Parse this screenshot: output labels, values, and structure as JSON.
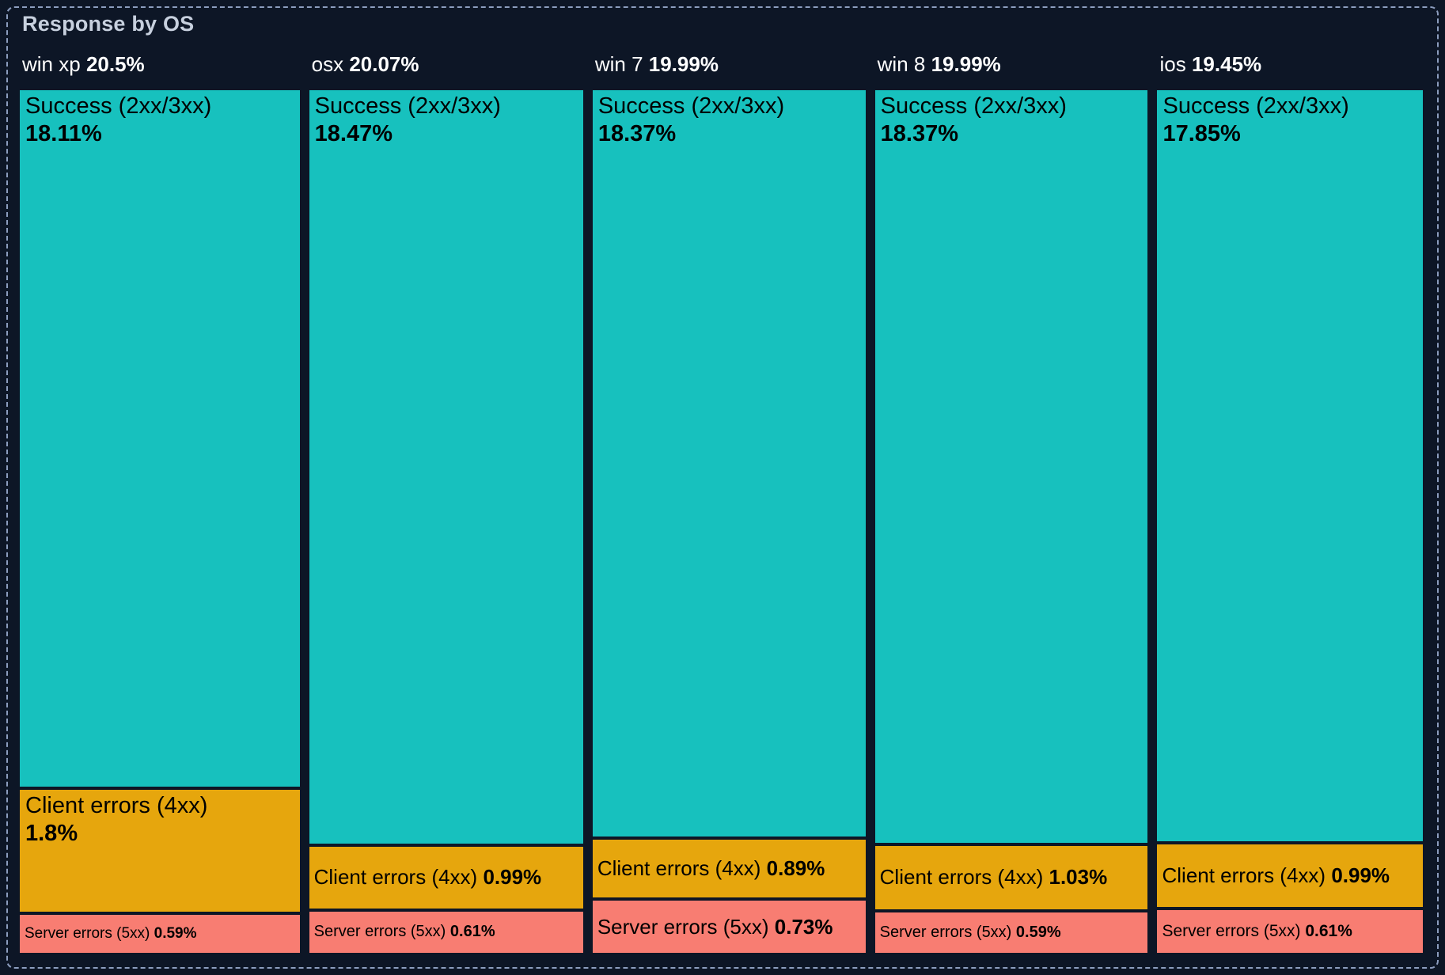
{
  "panel": {
    "title": "Response by OS"
  },
  "chart_data": {
    "type": "treemap",
    "title": "Response by OS",
    "unit": "%",
    "orientation": "columns",
    "background": "#0d1626",
    "palette": {
      "success": "#17c1be",
      "client_errors": "#e6a60d",
      "server_errors": "#f87d72"
    },
    "columns": [
      {
        "name": "win xp",
        "total": 20.5,
        "total_pct": "20.5%",
        "segments": [
          {
            "category": "success",
            "label": "Success (2xx/3xx)",
            "value": 18.11,
            "pct": "18.11%"
          },
          {
            "category": "client_errors",
            "label": "Client errors (4xx)",
            "value": 1.8,
            "pct": "1.8%"
          },
          {
            "category": "server_errors",
            "label": "Server errors (5xx)",
            "value": 0.59,
            "pct": "0.59%"
          }
        ]
      },
      {
        "name": "osx",
        "total": 20.07,
        "total_pct": "20.07%",
        "segments": [
          {
            "category": "success",
            "label": "Success (2xx/3xx)",
            "value": 18.47,
            "pct": "18.47%"
          },
          {
            "category": "client_errors",
            "label": "Client errors (4xx)",
            "value": 0.99,
            "pct": "0.99%"
          },
          {
            "category": "server_errors",
            "label": "Server errors (5xx)",
            "value": 0.61,
            "pct": "0.61%"
          }
        ]
      },
      {
        "name": "win 7",
        "total": 19.99,
        "total_pct": "19.99%",
        "segments": [
          {
            "category": "success",
            "label": "Success (2xx/3xx)",
            "value": 18.37,
            "pct": "18.37%"
          },
          {
            "category": "client_errors",
            "label": "Client errors (4xx)",
            "value": 0.89,
            "pct": "0.89%"
          },
          {
            "category": "server_errors",
            "label": "Server errors (5xx)",
            "value": 0.73,
            "pct": "0.73%"
          }
        ]
      },
      {
        "name": "win 8",
        "total": 19.99,
        "total_pct": "19.99%",
        "segments": [
          {
            "category": "success",
            "label": "Success (2xx/3xx)",
            "value": 18.37,
            "pct": "18.37%"
          },
          {
            "category": "client_errors",
            "label": "Client errors (4xx)",
            "value": 1.03,
            "pct": "1.03%"
          },
          {
            "category": "server_errors",
            "label": "Server errors (5xx)",
            "value": 0.59,
            "pct": "0.59%"
          }
        ]
      },
      {
        "name": "ios",
        "total": 19.45,
        "total_pct": "19.45%",
        "segments": [
          {
            "category": "success",
            "label": "Success (2xx/3xx)",
            "value": 17.85,
            "pct": "17.85%"
          },
          {
            "category": "client_errors",
            "label": "Client errors (4xx)",
            "value": 0.99,
            "pct": "0.99%"
          },
          {
            "category": "server_errors",
            "label": "Server errors (5xx)",
            "value": 0.61,
            "pct": "0.61%"
          }
        ]
      }
    ]
  }
}
